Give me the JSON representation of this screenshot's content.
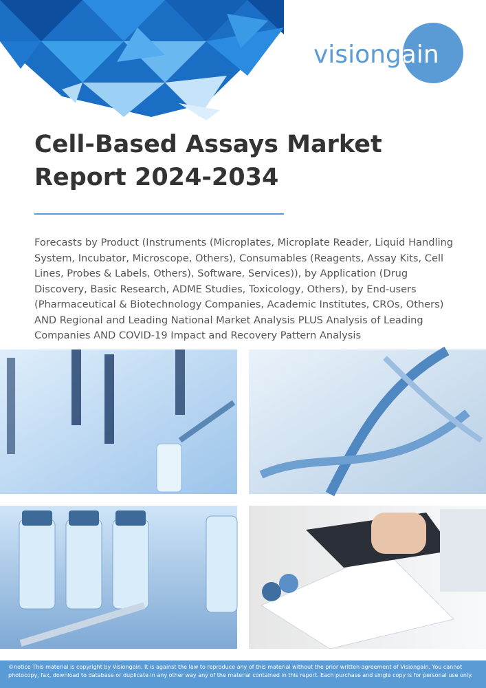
{
  "logo": "visiongain",
  "title": "Cell-Based Assays Market Report 2024-2034",
  "subtitle": "Forecasts by Product (Instruments (Microplates, Microplate Reader, Liquid Handling System, Incubator, Microscope, Others), Consumables (Reagents, Assay Kits, Cell Lines, Probes & Labels, Others), Software, Services)), by Application (Drug Discovery, Basic Research, ADME Studies, Toxicology, Others), by End-users (Pharmaceutical & Biotechnology Companies, Academic Institutes, CROs, Others) AND Regional and Leading National Market Analysis PLUS Analysis of Leading Companies AND COVID-19 Impact and Recovery Pattern Analysis",
  "notice": "©notice This material is copyright by Visiongain. It is against the law to reproduce any of this material without the prior written agreement of Visiongain. You cannot photocopy, fax, download to database or duplicate in any other way any of the material contained in this report. Each purchase and single copy is for personal use only."
}
